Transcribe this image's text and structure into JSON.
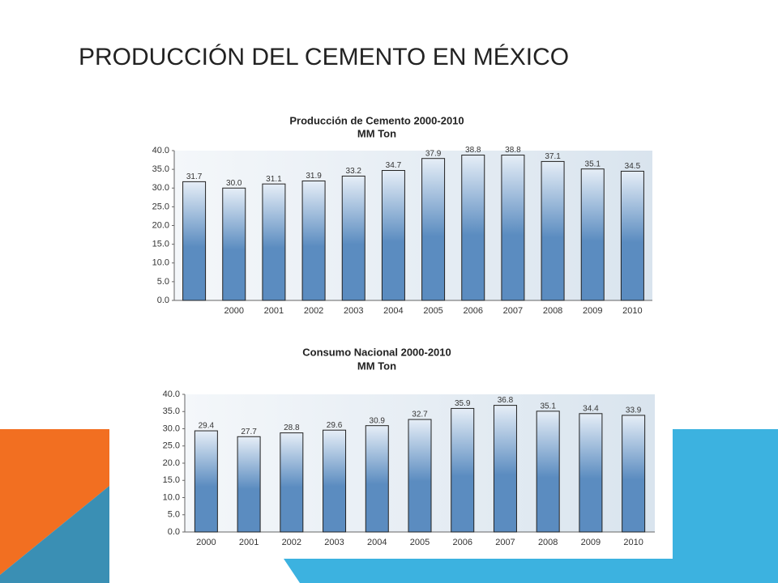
{
  "slide_title": "PRODUCCIÓN DEL CEMENTO EN MÉXICO",
  "chart_data": [
    {
      "type": "bar",
      "title": "Producción de Cemento 2000-2010",
      "subtitle": "MM Ton",
      "categories": [
        null,
        "2000",
        "2001",
        "2002",
        "2003",
        "2004",
        "2005",
        "2006",
        "2007",
        "2008",
        "2009",
        "2010"
      ],
      "values": [
        31.7,
        30.0,
        31.1,
        31.9,
        33.2,
        34.7,
        37.9,
        38.8,
        38.8,
        37.1,
        35.1,
        34.5
      ],
      "value_labels": [
        "31.7",
        "30.0",
        "31.1",
        "31.9",
        "33.2",
        "34.7",
        "37.9",
        "38.8",
        "38.8",
        "37.1",
        "35.1",
        "34.5"
      ],
      "color": "#5b8cc0",
      "ylim": [
        0,
        40
      ],
      "yticks": [
        {
          "value": 0,
          "label": "0.0"
        },
        {
          "value": 5,
          "label": "5.0"
        },
        {
          "value": 10,
          "label": "10.0"
        },
        {
          "value": 15,
          "label": "15.0"
        },
        {
          "value": 20,
          "label": "20.0"
        },
        {
          "value": 25,
          "label": "25.0"
        },
        {
          "value": 30,
          "label": "30.0"
        },
        {
          "value": 35,
          "label": "35.0"
        },
        {
          "value": 40,
          "label": "40.0"
        }
      ]
    },
    {
      "type": "bar",
      "title": "Consumo Nacional 2000-2010",
      "subtitle": "MM Ton",
      "categories": [
        "2000",
        "2001",
        "2002",
        "2003",
        "2004",
        "2005",
        "2006",
        "2007",
        "2008",
        "2009",
        "2010"
      ],
      "values": [
        29.4,
        27.7,
        28.8,
        29.6,
        30.9,
        32.7,
        35.9,
        36.8,
        35.1,
        34.4,
        33.9
      ],
      "value_labels": [
        "29.4",
        "27.7",
        "28.8",
        "29.6",
        "30.9",
        "32.7",
        "35.9",
        "36.8",
        "35.1",
        "34.4",
        "33.9"
      ],
      "color": "#5b8cc0",
      "ylim": [
        0,
        40
      ],
      "yticks": [
        {
          "value": 0,
          "label": "0.0"
        },
        {
          "value": 5,
          "label": "5.0"
        },
        {
          "value": 10,
          "label": "10.0"
        },
        {
          "value": 15,
          "label": "15.0"
        },
        {
          "value": 20,
          "label": "20.0"
        },
        {
          "value": 25,
          "label": "25.0"
        },
        {
          "value": 30,
          "label": "30.0"
        },
        {
          "value": 35,
          "label": "35.0"
        },
        {
          "value": 40,
          "label": "40.0"
        }
      ]
    }
  ]
}
